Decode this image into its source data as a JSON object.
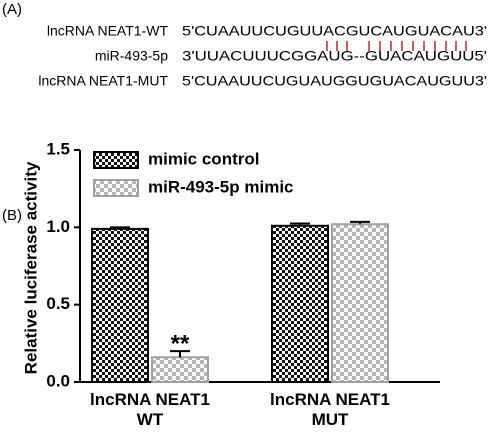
{
  "panel_a": {
    "label": "(A)",
    "rows": [
      {
        "name": "lncRNA NEAT1-WT",
        "sequence": "5'CUAAUUCUGUUACGUCAUGUACAU3'"
      },
      {
        "name": "miR-493-5p",
        "sequence": "3'UUACUUUCGGAUG--GUACAUGUU5'"
      },
      {
        "name": "lncRNA NEAT1-MUT",
        "sequence": "5'CUAAUUCUGUAUGGUGUACAUGUU3'"
      }
    ]
  },
  "panel_b_label": "(B)",
  "chart_data": {
    "type": "bar",
    "y_label": "Relative luciferase activity",
    "categories": [
      "lncRNA NEAT1\nWT",
      "lncRNA NEAT1\nMUT"
    ],
    "series": [
      {
        "name": "mimic control",
        "color": "#000000",
        "values": [
          0.99,
          1.01
        ],
        "errors": [
          0.01,
          0.015
        ]
      },
      {
        "name": "miR-493-5p mimic",
        "color": "#a0a0a0",
        "values": [
          0.16,
          1.02
        ],
        "errors": [
          0.04,
          0.015
        ]
      }
    ],
    "annotations": [
      {
        "text": "**",
        "category": 0,
        "series": 1
      }
    ],
    "ylim": [
      0,
      1.5
    ],
    "yticks": [
      {
        "value": 0,
        "label": "0.0"
      },
      {
        "value": 0.5,
        "label": "0.5"
      },
      {
        "value": 1,
        "label": "1.0"
      },
      {
        "value": 1.5,
        "label": "1.5"
      }
    ],
    "legend": "upper-left"
  }
}
